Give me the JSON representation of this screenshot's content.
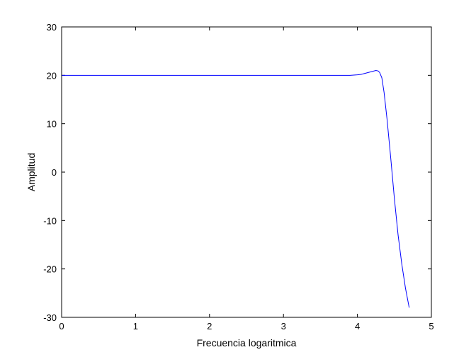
{
  "chart_data": {
    "type": "line",
    "title": "",
    "xlabel": "Frecuencia logaritmica",
    "ylabel": "Amplitud",
    "xlim": [
      0,
      5
    ],
    "ylim": [
      -30,
      30
    ],
    "xticks": [
      0,
      1,
      2,
      3,
      4,
      5
    ],
    "yticks": [
      -30,
      -20,
      -10,
      0,
      10,
      20,
      30
    ],
    "xtick_labels": [
      "0",
      "1",
      "2",
      "3",
      "4",
      "5"
    ],
    "ytick_labels": [
      "-30",
      "-20",
      "-10",
      "0",
      "10",
      "20",
      "30"
    ],
    "grid": false,
    "legend": "none",
    "colors": {
      "line": "#0000ff",
      "axes": "#000000",
      "background": "#ffffff"
    },
    "series": [
      {
        "x": [
          0,
          0.5,
          1,
          1.5,
          2,
          2.5,
          3,
          3.5,
          3.9,
          4.0,
          4.05,
          4.1,
          4.15,
          4.2,
          4.25,
          4.28,
          4.3,
          4.33,
          4.36,
          4.4,
          4.45,
          4.5,
          4.55,
          4.6,
          4.65,
          4.7
        ],
        "y": [
          20,
          20,
          20,
          20,
          20,
          20,
          20,
          20,
          20,
          20.1,
          20.2,
          20.4,
          20.6,
          20.8,
          21.0,
          20.9,
          20.6,
          19.5,
          16.5,
          11.0,
          3.0,
          -5.5,
          -13.0,
          -19.0,
          -24.0,
          -28.0
        ]
      }
    ]
  }
}
